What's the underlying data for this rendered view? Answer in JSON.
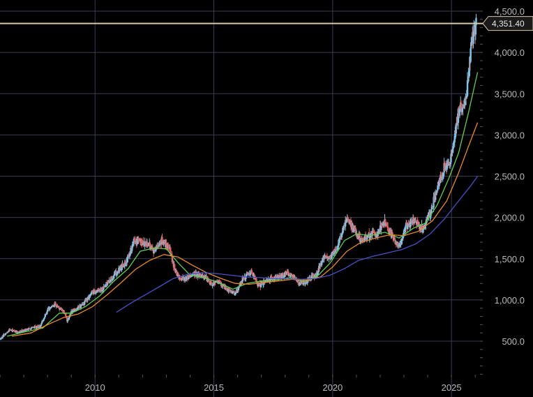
{
  "chart_data": {
    "type": "candlestick",
    "title": "",
    "xlabel": "",
    "ylabel": "",
    "x_ticks": [
      "2010",
      "2015",
      "2020",
      "2025"
    ],
    "y_ticks": [
      "500.0",
      "1,000.0",
      "1,500.0",
      "2,000.0",
      "2,500.0",
      "3,000.0",
      "3,500.0",
      "4,000.0",
      "4,500.0"
    ],
    "xlim": [
      2006.0,
      2026.2
    ],
    "ylim": [
      380,
      4500
    ],
    "grid": true,
    "current_price": {
      "value": 4351.4,
      "label": "4,351.40"
    },
    "colors": {
      "background": "#000000",
      "grid": "#3a3d55",
      "up": "#7fc3e6",
      "down": "#e0605a",
      "ma_short": "#5fcf4f",
      "ma_mid": "#e98a2c",
      "ma_long": "#4a4fc8",
      "price_line": "#d8c8a8"
    },
    "price_path": [
      [
        2006.0,
        520
      ],
      [
        2006.4,
        640
      ],
      [
        2006.8,
        610
      ],
      [
        2007.3,
        660
      ],
      [
        2007.7,
        680
      ],
      [
        2008.0,
        880
      ],
      [
        2008.3,
        950
      ],
      [
        2008.7,
        850
      ],
      [
        2008.85,
        740
      ],
      [
        2009.0,
        860
      ],
      [
        2009.5,
        950
      ],
      [
        2009.9,
        1100
      ],
      [
        2010.3,
        1130
      ],
      [
        2010.8,
        1300
      ],
      [
        2011.3,
        1450
      ],
      [
        2011.65,
        1720
      ],
      [
        2011.9,
        1700
      ],
      [
        2012.2,
        1680
      ],
      [
        2012.5,
        1600
      ],
      [
        2012.8,
        1720
      ],
      [
        2013.1,
        1660
      ],
      [
        2013.3,
        1420
      ],
      [
        2013.5,
        1280
      ],
      [
        2013.8,
        1250
      ],
      [
        2014.1,
        1320
      ],
      [
        2014.5,
        1300
      ],
      [
        2014.9,
        1200
      ],
      [
        2015.2,
        1220
      ],
      [
        2015.6,
        1120
      ],
      [
        2015.9,
        1070
      ],
      [
        2016.2,
        1250
      ],
      [
        2016.6,
        1340
      ],
      [
        2016.9,
        1170
      ],
      [
        2017.3,
        1250
      ],
      [
        2017.8,
        1280
      ],
      [
        2018.1,
        1330
      ],
      [
        2018.6,
        1200
      ],
      [
        2018.9,
        1230
      ],
      [
        2019.3,
        1300
      ],
      [
        2019.6,
        1500
      ],
      [
        2019.9,
        1520
      ],
      [
        2020.2,
        1650
      ],
      [
        2020.6,
        1970
      ],
      [
        2020.9,
        1850
      ],
      [
        2021.2,
        1730
      ],
      [
        2021.6,
        1800
      ],
      [
        2021.9,
        1800
      ],
      [
        2022.2,
        1950
      ],
      [
        2022.6,
        1720
      ],
      [
        2022.8,
        1650
      ],
      [
        2023.1,
        1900
      ],
      [
        2023.4,
        1960
      ],
      [
        2023.8,
        1850
      ],
      [
        2024.1,
        2050
      ],
      [
        2024.4,
        2350
      ],
      [
        2024.7,
        2600
      ],
      [
        2024.9,
        2650
      ],
      [
        2025.1,
        2900
      ],
      [
        2025.3,
        3300
      ],
      [
        2025.55,
        3350
      ],
      [
        2025.7,
        3650
      ],
      [
        2025.8,
        4000
      ],
      [
        2025.9,
        4250
      ],
      [
        2026.05,
        4351
      ]
    ],
    "series": [
      {
        "name": "",
        "kind": "moving-average-short",
        "values": [
          [
            2006.3,
            560
          ],
          [
            2007.0,
            610
          ],
          [
            2007.8,
            660
          ],
          [
            2008.5,
            840
          ],
          [
            2009.0,
            840
          ],
          [
            2009.6,
            920
          ],
          [
            2010.2,
            1050
          ],
          [
            2010.8,
            1230
          ],
          [
            2011.4,
            1380
          ],
          [
            2011.9,
            1590
          ],
          [
            2012.5,
            1630
          ],
          [
            2013.0,
            1620
          ],
          [
            2013.5,
            1450
          ],
          [
            2014.0,
            1300
          ],
          [
            2014.6,
            1270
          ],
          [
            2015.2,
            1210
          ],
          [
            2015.8,
            1130
          ],
          [
            2016.4,
            1200
          ],
          [
            2017.0,
            1230
          ],
          [
            2017.6,
            1240
          ],
          [
            2018.2,
            1270
          ],
          [
            2018.8,
            1220
          ],
          [
            2019.4,
            1300
          ],
          [
            2019.9,
            1450
          ],
          [
            2020.5,
            1720
          ],
          [
            2021.0,
            1800
          ],
          [
            2021.6,
            1780
          ],
          [
            2022.2,
            1820
          ],
          [
            2022.8,
            1750
          ],
          [
            2023.4,
            1870
          ],
          [
            2023.9,
            1930
          ],
          [
            2024.4,
            2150
          ],
          [
            2024.9,
            2480
          ],
          [
            2025.3,
            2780
          ],
          [
            2025.7,
            3250
          ],
          [
            2026.1,
            3760
          ]
        ]
      },
      {
        "name": "",
        "kind": "moving-average-mid",
        "values": [
          [
            2006.5,
            560
          ],
          [
            2007.3,
            600
          ],
          [
            2008.0,
            700
          ],
          [
            2008.7,
            790
          ],
          [
            2009.3,
            830
          ],
          [
            2009.9,
            920
          ],
          [
            2010.5,
            1060
          ],
          [
            2011.1,
            1210
          ],
          [
            2011.7,
            1370
          ],
          [
            2012.3,
            1480
          ],
          [
            2012.9,
            1550
          ],
          [
            2013.5,
            1520
          ],
          [
            2014.1,
            1420
          ],
          [
            2014.7,
            1330
          ],
          [
            2015.3,
            1260
          ],
          [
            2015.9,
            1200
          ],
          [
            2016.5,
            1190
          ],
          [
            2017.1,
            1210
          ],
          [
            2017.7,
            1230
          ],
          [
            2018.3,
            1250
          ],
          [
            2018.9,
            1240
          ],
          [
            2019.5,
            1280
          ],
          [
            2020.0,
            1400
          ],
          [
            2020.6,
            1590
          ],
          [
            2021.2,
            1700
          ],
          [
            2021.8,
            1750
          ],
          [
            2022.4,
            1790
          ],
          [
            2023.0,
            1780
          ],
          [
            2023.6,
            1830
          ],
          [
            2024.2,
            1960
          ],
          [
            2024.8,
            2200
          ],
          [
            2025.3,
            2540
          ],
          [
            2025.7,
            2850
          ],
          [
            2026.1,
            3150
          ]
        ]
      },
      {
        "name": "",
        "kind": "moving-average-long",
        "values": [
          [
            2010.9,
            850
          ],
          [
            2011.5,
            960
          ],
          [
            2012.1,
            1060
          ],
          [
            2012.7,
            1160
          ],
          [
            2013.3,
            1260
          ],
          [
            2013.9,
            1310
          ],
          [
            2014.5,
            1330
          ],
          [
            2015.1,
            1320
          ],
          [
            2015.7,
            1300
          ],
          [
            2016.3,
            1280
          ],
          [
            2016.9,
            1270
          ],
          [
            2017.5,
            1260
          ],
          [
            2018.1,
            1255
          ],
          [
            2018.7,
            1250
          ],
          [
            2019.3,
            1260
          ],
          [
            2019.9,
            1300
          ],
          [
            2020.5,
            1380
          ],
          [
            2021.1,
            1480
          ],
          [
            2021.7,
            1530
          ],
          [
            2022.3,
            1570
          ],
          [
            2022.9,
            1610
          ],
          [
            2023.5,
            1680
          ],
          [
            2024.1,
            1800
          ],
          [
            2024.7,
            1980
          ],
          [
            2025.3,
            2200
          ],
          [
            2025.8,
            2380
          ],
          [
            2026.1,
            2500
          ]
        ]
      }
    ]
  }
}
